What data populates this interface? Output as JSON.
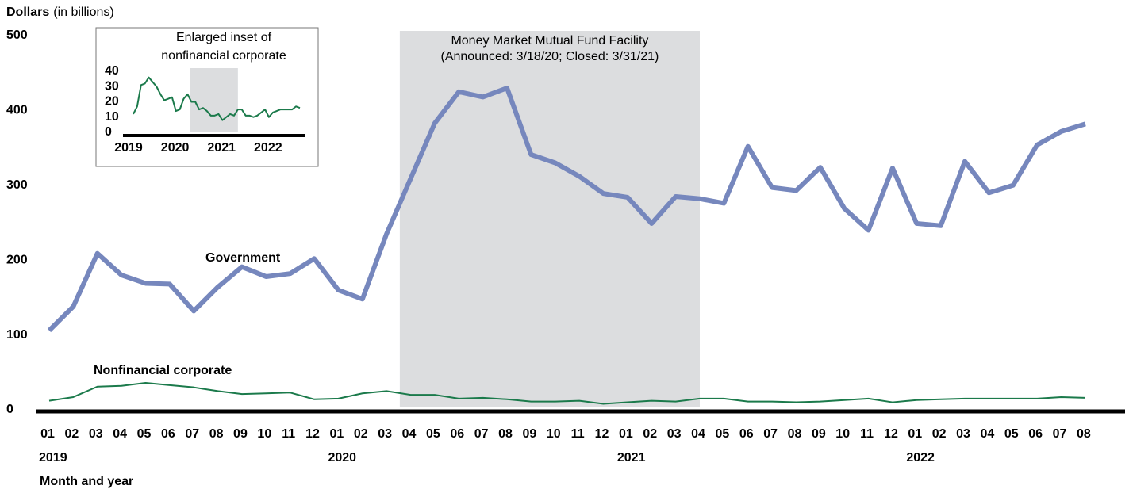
{
  "chart_data": {
    "type": "line",
    "y_label": "Dollars",
    "y_label_unit": "(in billions)",
    "x_label": "Month and year",
    "categories": [
      "01",
      "02",
      "03",
      "04",
      "05",
      "06",
      "07",
      "08",
      "09",
      "10",
      "11",
      "12",
      "01",
      "02",
      "03",
      "04",
      "05",
      "06",
      "07",
      "08",
      "09",
      "10",
      "11",
      "12",
      "01",
      "02",
      "03",
      "04",
      "05",
      "06",
      "07",
      "08",
      "09",
      "10",
      "11",
      "12",
      "01",
      "02",
      "03",
      "04",
      "05",
      "06",
      "07",
      "08"
    ],
    "category_groups": [
      {
        "label": "2019",
        "size": 12
      },
      {
        "label": "2020",
        "size": 12
      },
      {
        "label": "2021",
        "size": 12
      },
      {
        "label": "2022",
        "size": 8
      }
    ],
    "ylim": [
      0,
      500
    ],
    "yticks": [
      0,
      100,
      200,
      300,
      400,
      500
    ],
    "shaded_region": {
      "lines": [
        "Money Market Mutual Fund Facility",
        "(Announced: 3/18/20; Closed: 3/31/21)"
      ],
      "color": "#dcdddf"
    },
    "series": [
      {
        "name": "Government",
        "color": "#7687bd",
        "values": [
          106,
          138,
          209,
          180,
          169,
          168,
          132,
          164,
          191,
          178,
          182,
          202,
          160,
          148,
          235,
          309,
          383,
          425,
          418,
          430,
          341,
          330,
          312,
          289,
          284,
          249,
          285,
          282,
          276,
          352,
          297,
          293,
          324,
          269,
          240,
          323,
          249,
          246,
          332,
          290,
          300,
          354,
          372,
          382
        ]
      },
      {
        "name": "Nonfinancial corporate",
        "color": "#1b7a4b",
        "values": [
          12,
          17,
          31,
          32,
          36,
          33,
          30,
          25,
          21,
          22,
          23,
          14,
          15,
          22,
          25,
          20,
          20,
          15,
          16,
          14,
          11,
          11,
          12,
          8,
          10,
          12,
          11,
          15,
          15,
          11,
          11,
          10,
          11,
          13,
          15,
          10,
          13,
          14,
          15,
          15,
          15,
          15,
          17,
          16
        ]
      }
    ],
    "inset": {
      "title_lines": [
        "Enlarged inset of",
        "nonfinancial corporate"
      ],
      "ylim": [
        0,
        40
      ],
      "yticks": [
        0,
        10,
        20,
        30,
        40
      ],
      "xlabels": [
        "2019",
        "2020",
        "2021",
        "2022"
      ]
    }
  }
}
